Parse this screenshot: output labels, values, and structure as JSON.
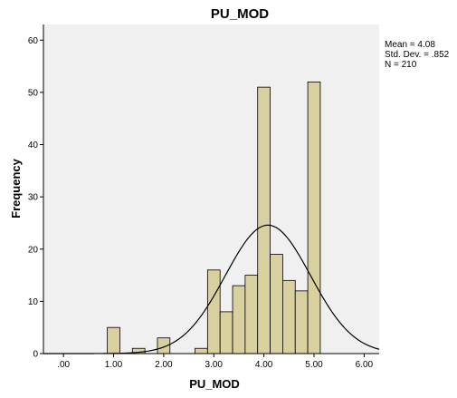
{
  "chart_data": {
    "type": "bar",
    "title": "PU_MOD",
    "xlabel": "PU_MOD",
    "ylabel": "Frequency",
    "xlim": [
      -0.4,
      6.3
    ],
    "ylim": [
      0,
      63
    ],
    "x_ticks": [
      {
        "value": 0,
        "label": ".00"
      },
      {
        "value": 1,
        "label": "1.00"
      },
      {
        "value": 2,
        "label": "2.00"
      },
      {
        "value": 3,
        "label": "3.00"
      },
      {
        "value": 4,
        "label": "4.00"
      },
      {
        "value": 5,
        "label": "5.00"
      },
      {
        "value": 6,
        "label": "6.00"
      }
    ],
    "y_ticks": [
      0,
      10,
      20,
      30,
      40,
      50,
      60
    ],
    "bins": [
      {
        "center": 1.0,
        "count": 5
      },
      {
        "center": 1.5,
        "count": 1
      },
      {
        "center": 2.0,
        "count": 3
      },
      {
        "center": 2.75,
        "count": 1
      },
      {
        "center": 3.0,
        "count": 16
      },
      {
        "center": 3.25,
        "count": 8
      },
      {
        "center": 3.5,
        "count": 13
      },
      {
        "center": 3.75,
        "count": 15
      },
      {
        "center": 4.0,
        "count": 51
      },
      {
        "center": 4.25,
        "count": 19
      },
      {
        "center": 4.5,
        "count": 14
      },
      {
        "center": 4.75,
        "count": 12
      },
      {
        "center": 5.0,
        "count": 52
      }
    ],
    "bin_width": 0.25,
    "bar_color": "#D8D09F",
    "plot_background": "#F0F0F0",
    "normal_curve": {
      "mean": 4.08,
      "sd": 0.852,
      "n": 210
    },
    "stats_lines": [
      "Mean = 4.08",
      "Std. Dev. = .852",
      "N = 210"
    ],
    "grid": false,
    "legend": "none"
  }
}
